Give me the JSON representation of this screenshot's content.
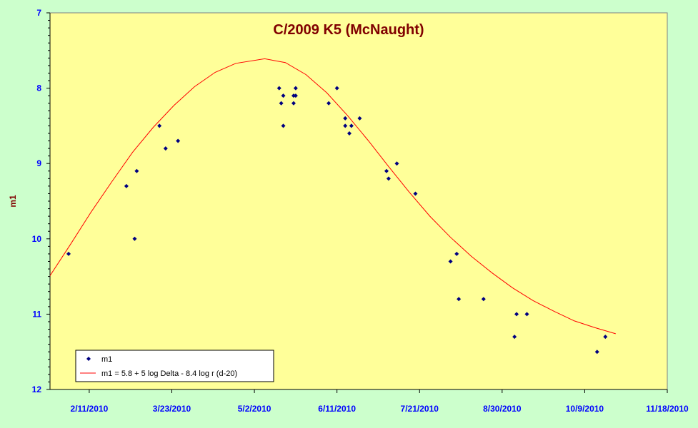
{
  "chart_data": {
    "type": "scatter",
    "title": "C/2009 K5 (McNaught)",
    "xlabel": "",
    "ylabel": "m1",
    "xlim": [
      "2010-01-23",
      "2010-11-18"
    ],
    "ylim": [
      7,
      12
    ],
    "y_reversed": true,
    "y_ticks": [
      "7",
      "8",
      "9",
      "10",
      "11",
      "12"
    ],
    "x_tick_labels": [
      "2/11/2010",
      "3/23/2010",
      "5/2/2010",
      "6/11/2010",
      "7/21/2010",
      "8/30/2010",
      "10/9/2010",
      "11/18/2010"
    ],
    "x_tick_dates": [
      "2010-02-11",
      "2010-03-23",
      "2010-05-02",
      "2010-06-11",
      "2010-07-21",
      "2010-08-30",
      "2010-10-09",
      "2010-11-18"
    ],
    "grid": false,
    "legend_position": "bottom-left",
    "series": [
      {
        "name": "m1",
        "kind": "markers",
        "color": "#000080",
        "points": [
          {
            "x": "2010-02-01",
            "y": 10.2
          },
          {
            "x": "2010-03-01",
            "y": 9.3
          },
          {
            "x": "2010-03-05",
            "y": 10.0
          },
          {
            "x": "2010-03-06",
            "y": 9.1
          },
          {
            "x": "2010-03-17",
            "y": 8.5
          },
          {
            "x": "2010-03-20",
            "y": 8.8
          },
          {
            "x": "2010-03-26",
            "y": 8.7
          },
          {
            "x": "2010-05-14",
            "y": 8.0
          },
          {
            "x": "2010-05-15",
            "y": 8.2
          },
          {
            "x": "2010-05-16",
            "y": 8.1
          },
          {
            "x": "2010-05-16",
            "y": 8.5
          },
          {
            "x": "2010-05-21",
            "y": 8.1
          },
          {
            "x": "2010-05-21",
            "y": 8.2
          },
          {
            "x": "2010-05-22",
            "y": 8.1
          },
          {
            "x": "2010-05-22",
            "y": 8.0
          },
          {
            "x": "2010-06-07",
            "y": 8.2
          },
          {
            "x": "2010-06-11",
            "y": 8.0
          },
          {
            "x": "2010-06-15",
            "y": 8.4
          },
          {
            "x": "2010-06-15",
            "y": 8.5
          },
          {
            "x": "2010-06-17",
            "y": 8.6
          },
          {
            "x": "2010-06-18",
            "y": 8.5
          },
          {
            "x": "2010-06-22",
            "y": 8.4
          },
          {
            "x": "2010-07-05",
            "y": 9.1
          },
          {
            "x": "2010-07-06",
            "y": 9.2
          },
          {
            "x": "2010-07-10",
            "y": 9.0
          },
          {
            "x": "2010-07-19",
            "y": 9.4
          },
          {
            "x": "2010-08-05",
            "y": 10.3
          },
          {
            "x": "2010-08-08",
            "y": 10.2
          },
          {
            "x": "2010-08-09",
            "y": 10.8
          },
          {
            "x": "2010-08-21",
            "y": 10.8
          },
          {
            "x": "2010-09-05",
            "y": 11.3
          },
          {
            "x": "2010-09-06",
            "y": 11.0
          },
          {
            "x": "2010-09-11",
            "y": 11.0
          },
          {
            "x": "2010-10-15",
            "y": 11.5
          },
          {
            "x": "2010-10-19",
            "y": 11.3
          }
        ]
      },
      {
        "name": "m1 = 5.8 + 5 log Delta - 8.4 log r (d-20)",
        "kind": "line",
        "color": "#ff0000",
        "points": [
          {
            "x": "2010-01-23",
            "y": 10.49
          },
          {
            "x": "2010-02-02",
            "y": 10.07
          },
          {
            "x": "2010-02-12",
            "y": 9.64
          },
          {
            "x": "2010-02-22",
            "y": 9.24
          },
          {
            "x": "2010-03-04",
            "y": 8.85
          },
          {
            "x": "2010-03-14",
            "y": 8.52
          },
          {
            "x": "2010-03-24",
            "y": 8.23
          },
          {
            "x": "2010-04-03",
            "y": 7.98
          },
          {
            "x": "2010-04-13",
            "y": 7.79
          },
          {
            "x": "2010-04-23",
            "y": 7.67
          },
          {
            "x": "2010-05-07",
            "y": 7.61
          },
          {
            "x": "2010-05-17",
            "y": 7.66
          },
          {
            "x": "2010-05-27",
            "y": 7.82
          },
          {
            "x": "2010-06-06",
            "y": 8.06
          },
          {
            "x": "2010-06-16",
            "y": 8.36
          },
          {
            "x": "2010-06-26",
            "y": 8.69
          },
          {
            "x": "2010-07-06",
            "y": 9.04
          },
          {
            "x": "2010-07-16",
            "y": 9.38
          },
          {
            "x": "2010-07-26",
            "y": 9.7
          },
          {
            "x": "2010-08-05",
            "y": 9.98
          },
          {
            "x": "2010-08-15",
            "y": 10.23
          },
          {
            "x": "2010-08-25",
            "y": 10.45
          },
          {
            "x": "2010-09-04",
            "y": 10.65
          },
          {
            "x": "2010-09-14",
            "y": 10.82
          },
          {
            "x": "2010-09-24",
            "y": 10.96
          },
          {
            "x": "2010-10-04",
            "y": 11.09
          },
          {
            "x": "2010-10-14",
            "y": 11.18
          },
          {
            "x": "2010-10-24",
            "y": 11.26
          }
        ]
      }
    ]
  }
}
